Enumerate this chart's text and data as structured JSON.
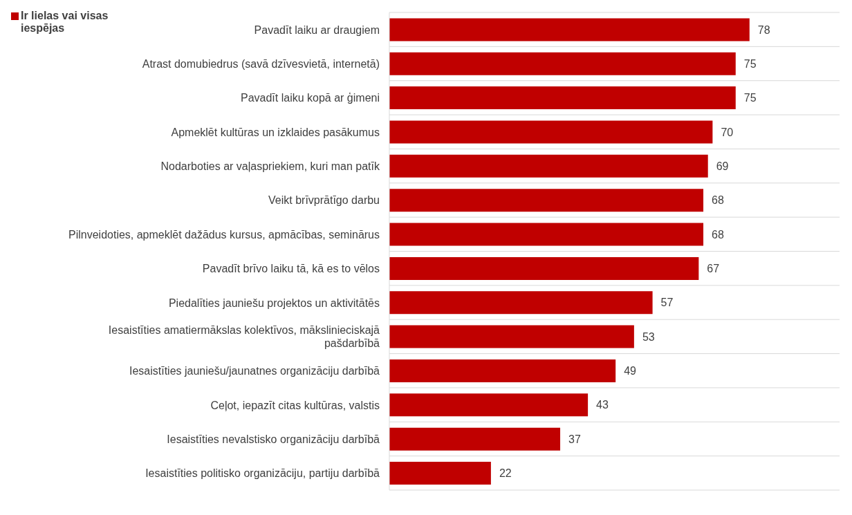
{
  "chart_data": {
    "type": "bar",
    "orientation": "horizontal",
    "categories": [
      "Pavadīt laiku ar draugiem",
      "Atrast domubiedrus (savā dzīvesvietā, internetā)",
      "Pavadīt laiku kopā ar ģimeni",
      "Apmeklēt kultūras un izklaides pasākumus",
      "Nodarboties ar vaļaspriekiem, kuri man patīk",
      "Veikt brīvprātīgo darbu",
      "Pilnveidoties, apmeklēt dažādus kursus, apmācības, seminārus",
      "Pavadīt brīvo laiku tā, kā es to vēlos",
      "Piedalīties jauniešu projektos un aktivitātēs",
      "Iesaistīties amatiermākslas kolektīvos, mākslinieciskajā pašdarbībā",
      "Iesaistīties jauniešu/jaunatnes organizāciju darbībā",
      "Ceļot, iepazīt citas kultūras, valstis",
      "Iesaistīties nevalstisko organizāciju darbībā",
      "Iesaistīties politisko organizāciju, partiju darbībā"
    ],
    "series": [
      {
        "name": "Ir lielas vai visas iespējas",
        "color": "#c00000",
        "values": [
          78,
          75,
          75,
          70,
          69,
          68,
          68,
          67,
          57,
          53,
          49,
          43,
          37,
          22
        ]
      }
    ],
    "data_labels": true,
    "grid": "y",
    "legend": "top left"
  }
}
